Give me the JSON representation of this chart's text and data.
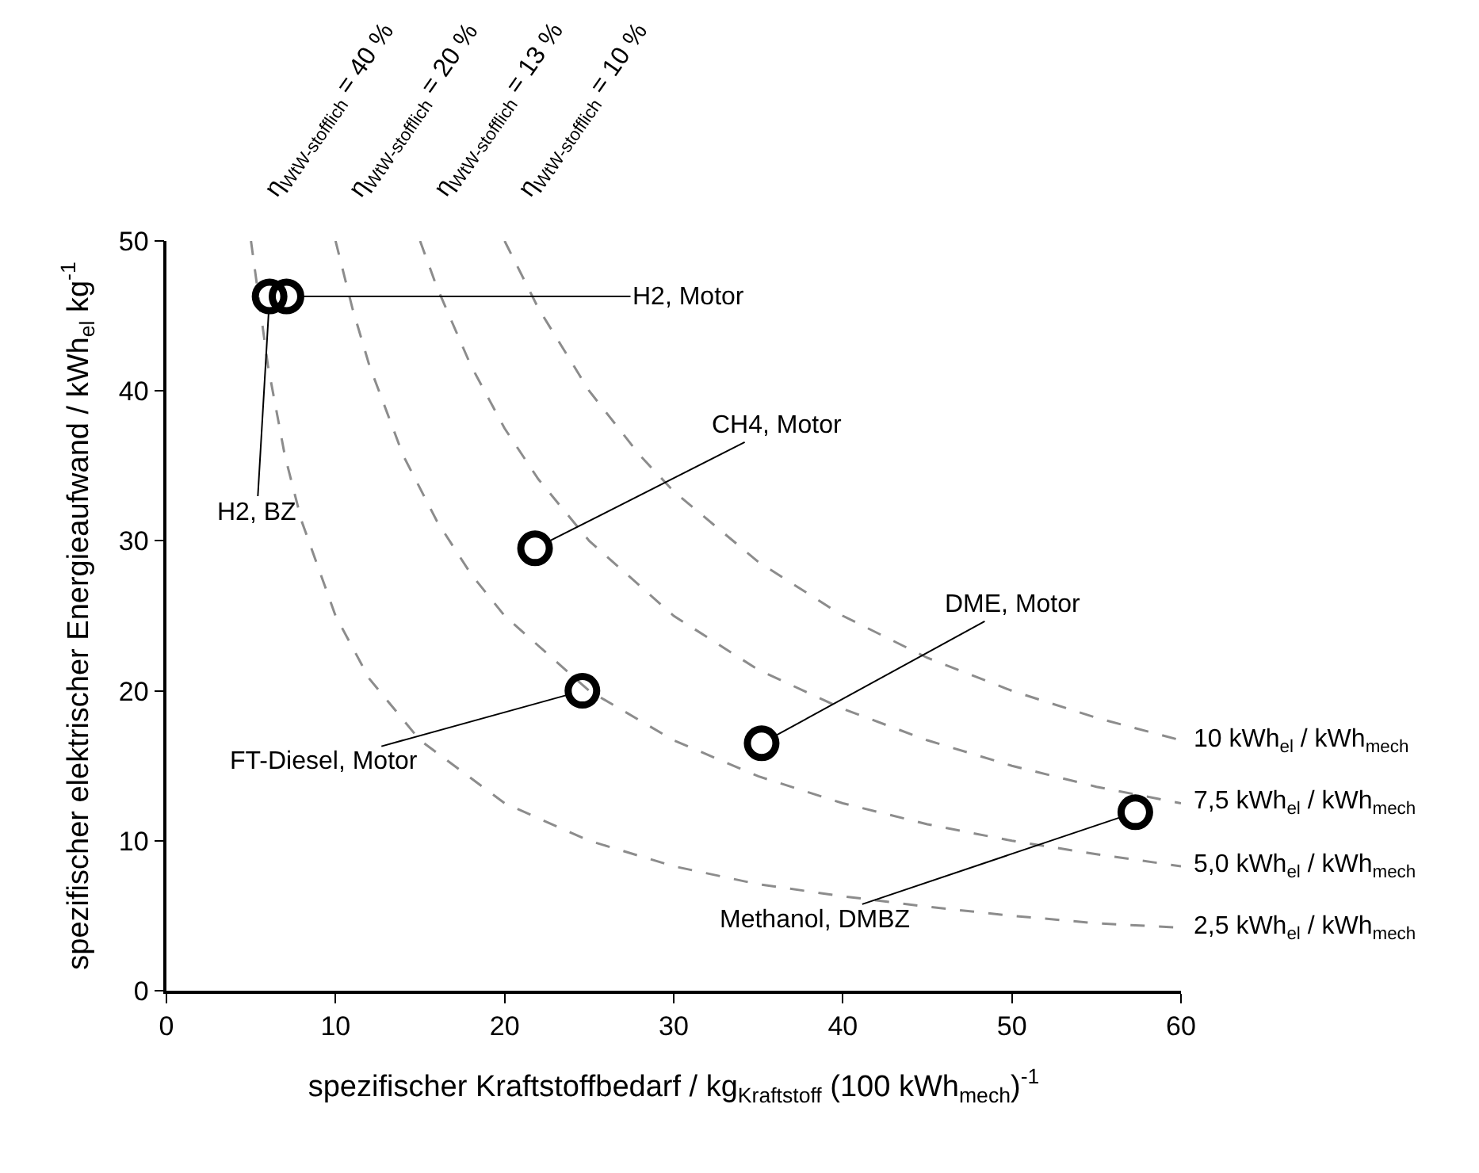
{
  "chart_data": {
    "type": "scatter",
    "xlabel": "spezifischer Kraftstoffbedarf / kg$_{Kraftstoff}$ (100 kWh$_{mech}$)$^{-1}$",
    "ylabel": "spezifischer elektrischer Energieaufwand / kWh$_{el}$ kg$^{-1}$",
    "xlim": [
      0,
      60
    ],
    "xticks": [
      0,
      10,
      20,
      30,
      40,
      50,
      60
    ],
    "ylim": [
      0,
      50
    ],
    "yticks": [
      0,
      10,
      20,
      30,
      40,
      50
    ],
    "series": [
      {
        "type": "line",
        "name": "2,5 kWh$_{el}$ / kWh$_{mech}$",
        "color": "#8c8c8c",
        "line_style": "dashed",
        "marker": "none",
        "x": [
          5,
          6,
          7,
          8,
          10,
          12,
          15,
          20,
          25,
          30,
          35,
          40,
          45,
          50,
          55,
          60
        ],
        "values": [
          50,
          41.7,
          35.7,
          31.3,
          25,
          20.8,
          16.7,
          12.5,
          10,
          8.3,
          7.1,
          6.3,
          5.6,
          5,
          4.5,
          4.2
        ]
      },
      {
        "type": "line",
        "name": "5,0 kWh$_{el}$ / kWh$_{mech}$",
        "color": "#8c8c8c",
        "line_style": "dashed",
        "marker": "none",
        "x": [
          10,
          11,
          12,
          14,
          16,
          18,
          20,
          25,
          30,
          35,
          40,
          45,
          50,
          55,
          60
        ],
        "values": [
          50,
          45.5,
          41.7,
          35.7,
          31.3,
          27.8,
          25,
          20,
          16.7,
          14.3,
          12.5,
          11.1,
          10,
          9.1,
          8.3
        ]
      },
      {
        "type": "line",
        "name": "7,5 kWh$_{el}$ / kWh$_{mech}$",
        "color": "#8c8c8c",
        "line_style": "dashed",
        "marker": "none",
        "x": [
          15,
          16,
          18,
          20,
          22,
          25,
          30,
          35,
          40,
          45,
          50,
          55,
          60
        ],
        "values": [
          50,
          46.9,
          41.7,
          37.5,
          34.1,
          30,
          25,
          21.4,
          18.8,
          16.7,
          15,
          13.6,
          12.5
        ]
      },
      {
        "type": "line",
        "name": "10 kWh$_{el}$ / kWh$_{mech}$",
        "color": "#8c8c8c",
        "line_style": "dashed",
        "marker": "none",
        "x": [
          20,
          22,
          25,
          28,
          30,
          35,
          40,
          45,
          50,
          55,
          60
        ],
        "values": [
          50,
          45.5,
          40,
          35.7,
          33.3,
          28.6,
          25,
          22.2,
          20,
          18.2,
          16.7
        ]
      },
      {
        "color": "#000000",
        "marker": "circle",
        "x": [
          6.1,
          7.1,
          21.8,
          24.6,
          35.2,
          57.3
        ],
        "values": [
          46.3,
          46.3,
          29.5,
          20,
          16.5,
          11.9
        ]
      }
    ],
    "annotations": [
      {
        "text": "H2, Motor",
        "x": 7.1,
        "y": 46.3
      },
      {
        "text": "H2, BZ",
        "x": 6.1,
        "y": 46.3
      },
      {
        "text": "CH4, Motor",
        "x": 21.8,
        "y": 29.5
      },
      {
        "text": "FT-Diesel, Motor",
        "x": 24.6,
        "y": 20
      },
      {
        "text": "DME, Motor",
        "x": 35.2,
        "y": 16.5
      },
      {
        "text": "Methanol, DMBZ",
        "x": 57.3,
        "y": 11.9
      },
      {
        "text": "η$_{WtW-stofflich}$ = 40 %",
        "x": 5,
        "y": 50
      },
      {
        "text": "η$_{WtW-stofflich}$ = 20 %",
        "x": 10,
        "y": 50
      },
      {
        "text": "η$_{WtW-stofflich}$ = 13 %",
        "x": 15,
        "y": 50
      },
      {
        "text": "η$_{WtW-stofflich}$ = 10 %",
        "x": 20,
        "y": 50
      }
    ]
  }
}
